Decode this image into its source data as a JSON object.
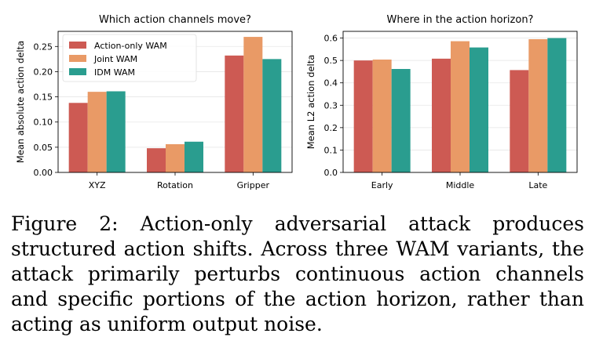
{
  "chart_data": [
    {
      "type": "bar",
      "title": "Which action channels move?",
      "xlabel": "",
      "ylabel": "Mean absolute action delta",
      "categories": [
        "XYZ",
        "Rotation",
        "Gripper"
      ],
      "ylim": [
        0,
        0.28
      ],
      "yticks": [
        0.0,
        0.05,
        0.1,
        0.15,
        0.2,
        0.25
      ],
      "ytick_labels": [
        "0.00",
        "0.05",
        "0.10",
        "0.15",
        "0.20",
        "0.25"
      ],
      "grid": "horizontal",
      "legend": "top-left",
      "series": [
        {
          "name": "Action-only WAM",
          "color": "#cd5a53",
          "values": [
            0.138,
            0.048,
            0.232
          ]
        },
        {
          "name": "Joint WAM",
          "color": "#e99a66",
          "values": [
            0.16,
            0.056,
            0.269
          ]
        },
        {
          "name": "IDM WAM",
          "color": "#2a9d8f",
          "values": [
            0.161,
            0.061,
            0.225
          ]
        }
      ]
    },
    {
      "type": "bar",
      "title": "Where in the action horizon?",
      "xlabel": "",
      "ylabel": "Mean L2 action delta",
      "categories": [
        "Early",
        "Middle",
        "Late"
      ],
      "ylim": [
        0,
        0.63
      ],
      "yticks": [
        0.0,
        0.1,
        0.2,
        0.3,
        0.4,
        0.5,
        0.6
      ],
      "ytick_labels": [
        "0.0",
        "0.1",
        "0.2",
        "0.3",
        "0.4",
        "0.5",
        "0.6"
      ],
      "grid": "horizontal",
      "series": [
        {
          "name": "Action-only WAM",
          "color": "#cd5a53",
          "values": [
            0.5,
            0.508,
            0.457
          ]
        },
        {
          "name": "Joint WAM",
          "color": "#e99a66",
          "values": [
            0.504,
            0.586,
            0.595
          ]
        },
        {
          "name": "IDM WAM",
          "color": "#2a9d8f",
          "values": [
            0.462,
            0.558,
            0.6
          ]
        }
      ]
    }
  ],
  "caption": "Figure 2: Action-only adversarial attack produces structured action shifts. Across three WAM variants, the attack primarily perturbs continuous action channels and specific portions of the action horizon, rather than acting as uniform output noise."
}
